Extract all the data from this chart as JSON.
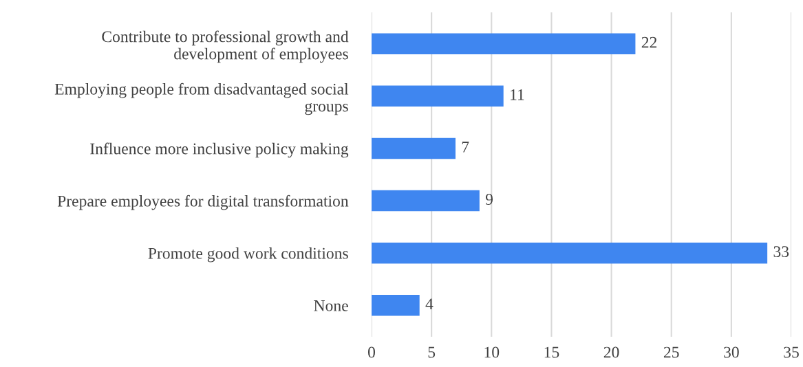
{
  "chart_data": {
    "type": "bar",
    "orientation": "horizontal",
    "categories": [
      "Contribute to professional growth and\ndevelopment of employees",
      "Employing people from disadvantaged social\ngroups",
      "Influence more inclusive policy making",
      "Prepare employees for digital transformation",
      "Promote good work conditions",
      "None"
    ],
    "values": [
      22,
      11,
      7,
      9,
      33,
      4
    ],
    "color": "#3f86f0",
    "xlim": [
      0,
      35
    ],
    "xticks": [
      0,
      5,
      10,
      15,
      20,
      25,
      30,
      35
    ],
    "grid": "x",
    "data_labels": true
  }
}
